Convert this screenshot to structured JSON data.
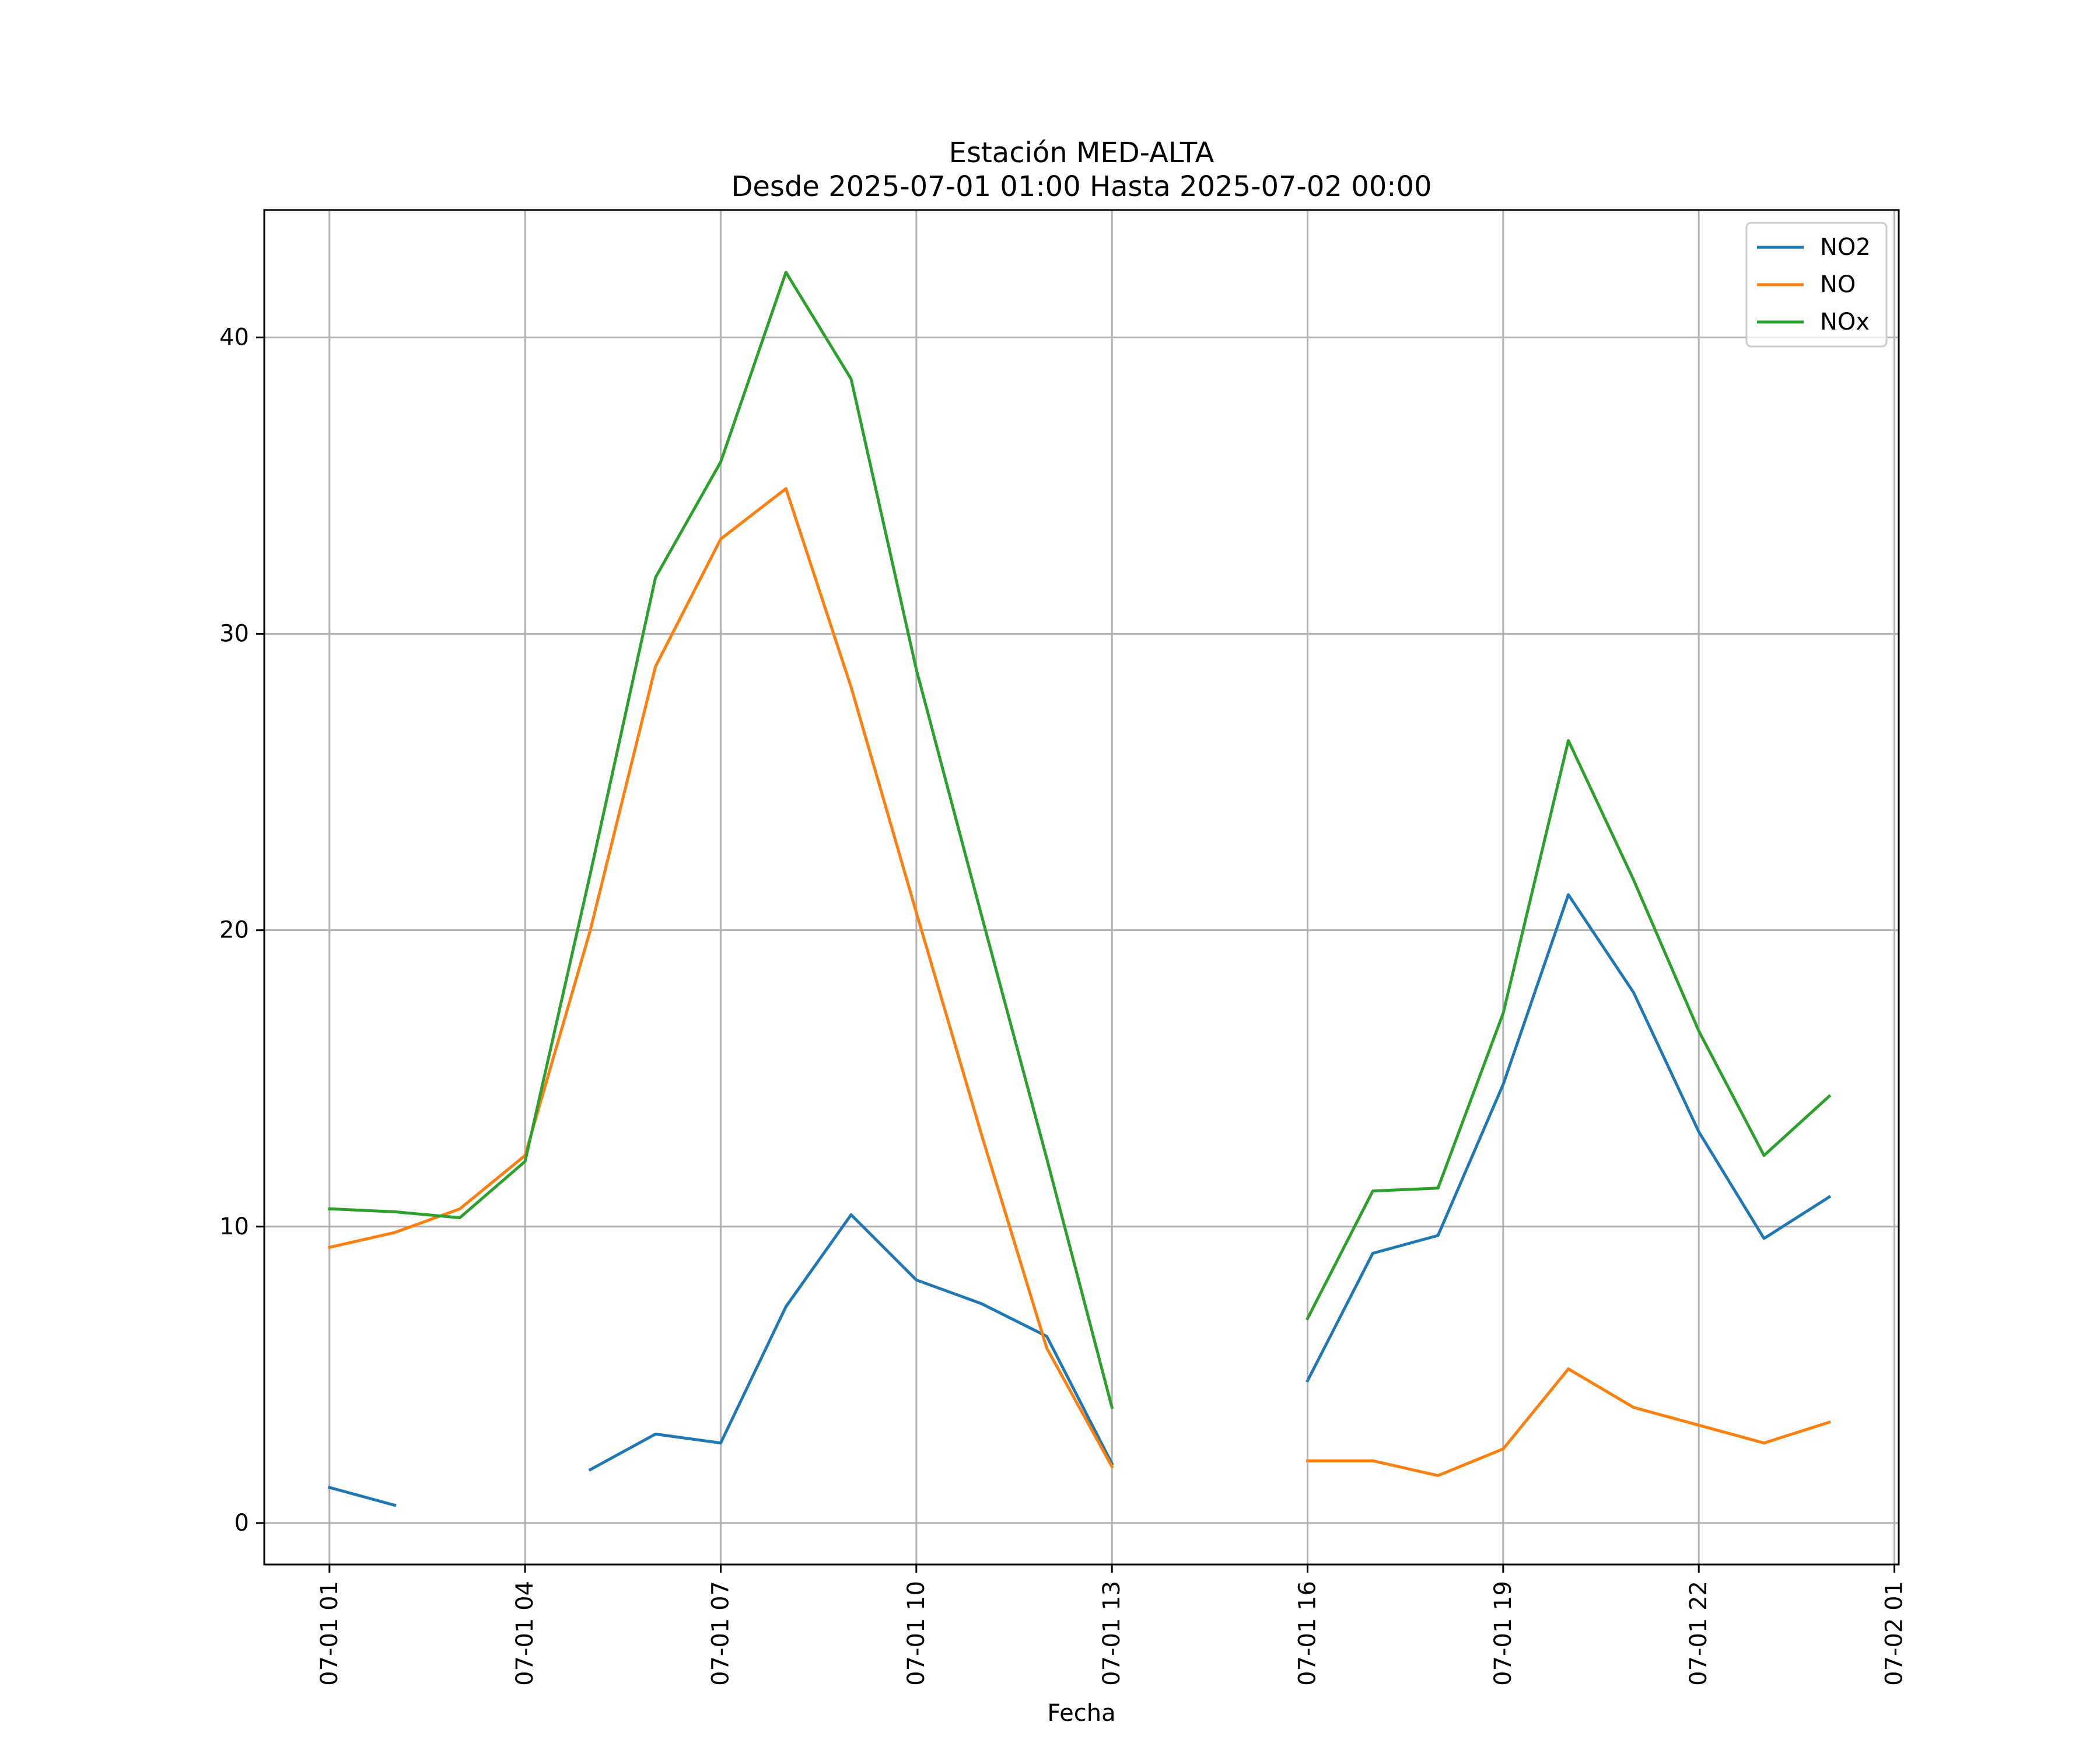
{
  "chart_data": {
    "type": "line",
    "title": "Estación MED-ALTA",
    "subtitle": "Desde 2025-07-01 01:00 Hasta 2025-07-02 00:00",
    "xlabel": "Fecha",
    "ylabel": "",
    "x_ticks": [
      "07-01 01",
      "07-01 04",
      "07-01 07",
      "07-01 10",
      "07-01 13",
      "07-01 16",
      "07-01 19",
      "07-01 22",
      "07-02 01"
    ],
    "y_ticks": [
      0,
      10,
      20,
      30,
      40
    ],
    "xlim": [
      "2025-07-01 00:00",
      "2025-07-02 01:04"
    ],
    "ylim": [
      -1.4,
      44.3
    ],
    "grid": true,
    "legend_position": "top-right",
    "x": [
      "07-01 01",
      "07-01 02",
      "07-01 03",
      "07-01 04",
      "07-01 05",
      "07-01 06",
      "07-01 07",
      "07-01 08",
      "07-01 09",
      "07-01 10",
      "07-01 11",
      "07-01 12",
      "07-01 13",
      "07-01 14",
      "07-01 15",
      "07-01 16",
      "07-01 17",
      "07-01 18",
      "07-01 19",
      "07-01 20",
      "07-01 21",
      "07-01 22",
      "07-01 23",
      "07-02 00"
    ],
    "series": [
      {
        "name": "NO2",
        "color": "#1f77b4",
        "values": [
          1.2,
          0.6,
          null,
          null,
          1.8,
          3.0,
          2.7,
          7.3,
          10.4,
          8.2,
          7.4,
          6.3,
          2.0,
          null,
          null,
          4.8,
          9.1,
          9.7,
          14.8,
          21.2,
          17.9,
          13.2,
          9.6,
          11.0
        ]
      },
      {
        "name": "NO",
        "color": "#ff7f0e",
        "values": [
          9.3,
          9.8,
          10.6,
          12.4,
          20.0,
          28.9,
          33.2,
          34.9,
          28.2,
          20.6,
          13.1,
          5.9,
          1.9,
          null,
          null,
          2.1,
          2.1,
          1.6,
          2.5,
          5.2,
          3.9,
          3.3,
          2.7,
          3.4
        ]
      },
      {
        "name": "NOx",
        "color": "#2ca02c",
        "values": [
          10.6,
          10.5,
          10.3,
          12.2,
          21.9,
          31.9,
          35.8,
          42.2,
          38.6,
          28.8,
          20.5,
          12.3,
          3.9,
          null,
          null,
          6.9,
          11.2,
          11.3,
          17.2,
          26.4,
          21.7,
          16.6,
          12.4,
          14.4
        ]
      }
    ]
  }
}
